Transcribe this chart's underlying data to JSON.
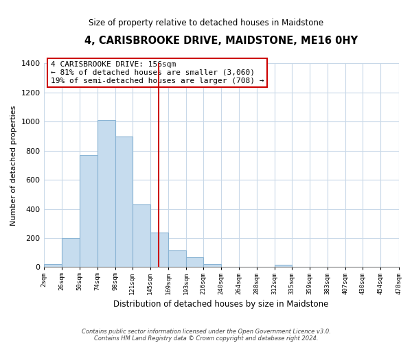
{
  "title": "4, CARISBROOKE DRIVE, MAIDSTONE, ME16 0HY",
  "subtitle": "Size of property relative to detached houses in Maidstone",
  "xlabel": "Distribution of detached houses by size in Maidstone",
  "ylabel": "Number of detached properties",
  "bin_edges": [
    2,
    26,
    50,
    74,
    98,
    121,
    145,
    169,
    193,
    216,
    240,
    264,
    288,
    312,
    335,
    359,
    383,
    407,
    430,
    454,
    478
  ],
  "bin_heights": [
    20,
    200,
    770,
    1010,
    895,
    430,
    240,
    115,
    70,
    20,
    0,
    0,
    0,
    15,
    0,
    0,
    0,
    0,
    0,
    0
  ],
  "bar_color": "#c6dcee",
  "bar_edge_color": "#8ab4d4",
  "reference_line_x": 156,
  "reference_line_color": "#cc0000",
  "ylim": [
    0,
    1400
  ],
  "yticks": [
    0,
    200,
    400,
    600,
    800,
    1000,
    1200,
    1400
  ],
  "annotation_line1": "4 CARISBROOKE DRIVE: 156sqm",
  "annotation_line2": "← 81% of detached houses are smaller (3,060)",
  "annotation_line3": "19% of semi-detached houses are larger (708) →",
  "annotation_box_color": "#cc0000",
  "footnote_line1": "Contains HM Land Registry data © Crown copyright and database right 2024.",
  "footnote_line2": "Contains public sector information licensed under the Open Government Licence v3.0.",
  "background_color": "#ffffff",
  "grid_color": "#c8d8e8"
}
